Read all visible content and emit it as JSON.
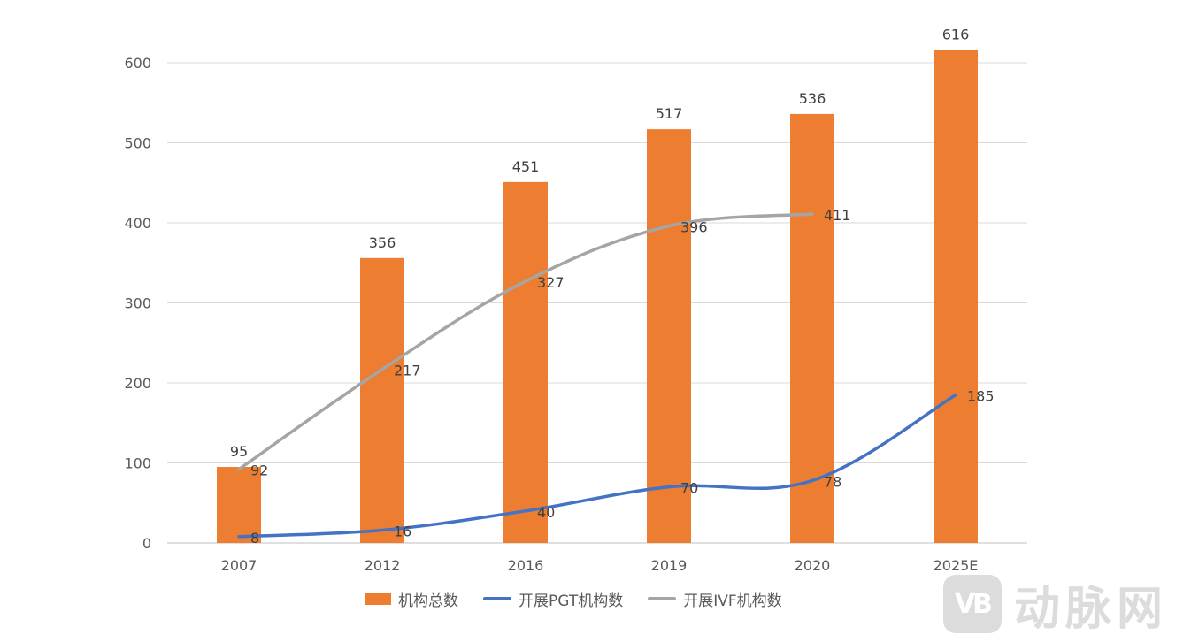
{
  "chart_data": {
    "type": "bar",
    "categories": [
      "2007",
      "2012",
      "2016",
      "2019",
      "2020",
      "2025E"
    ],
    "ylim": [
      0,
      600
    ],
    "yticks": [
      0,
      100,
      200,
      300,
      400,
      500,
      600
    ],
    "grid": true,
    "legend_position": "bottom",
    "series": [
      {
        "name": "机构总数",
        "kind": "bar",
        "color": "#ED7D31",
        "values": [
          95,
          356,
          451,
          517,
          536,
          616
        ]
      },
      {
        "name": "开展PGT机构数",
        "kind": "line",
        "color": "#4472C4",
        "values": [
          8,
          16,
          40,
          70,
          78,
          185
        ]
      },
      {
        "name": "开展IVF机构数",
        "kind": "line",
        "color": "#A5A5A5",
        "values": [
          92,
          217,
          327,
          396,
          411,
          null
        ]
      }
    ]
  },
  "watermark": {
    "logo_text": "VB",
    "text": "动脉网"
  }
}
